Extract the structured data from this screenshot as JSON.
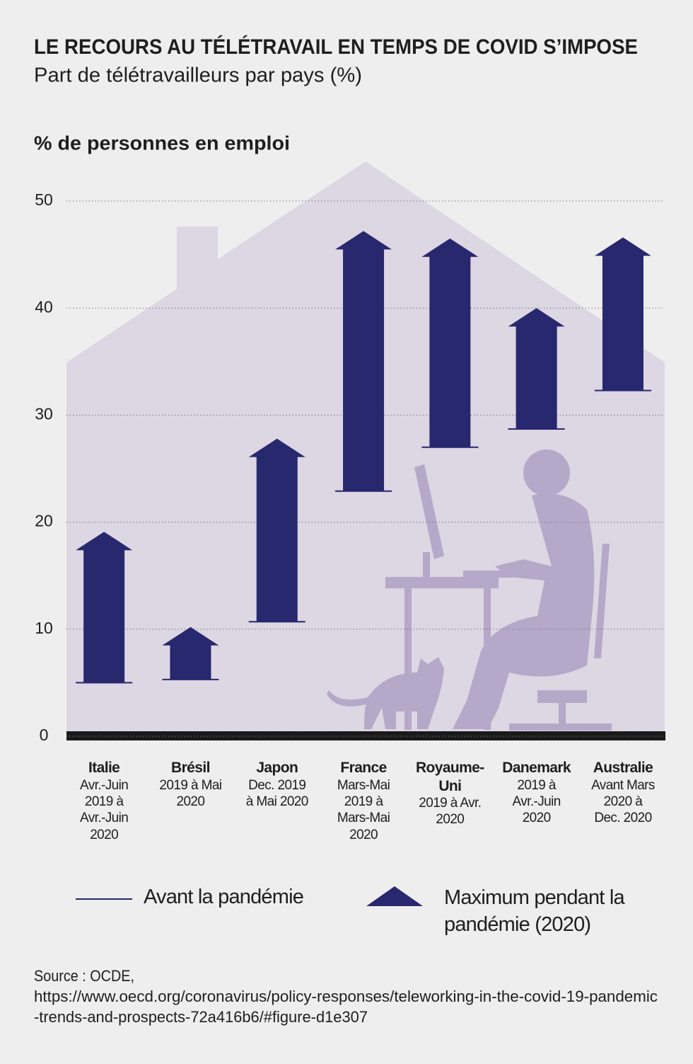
{
  "chart_data": {
    "type": "arrow",
    "title": "LE RECOURS AU TÉLÉTRAVAIL EN TEMPS DE COVID S’IMPOSE",
    "subtitle": "Part de télétravailleurs par pays (%)",
    "y_label": "% de personnes en emploi",
    "categories": [
      "Italie",
      "Brésil",
      "Japon",
      "France",
      "Royaume-Uni",
      "Danemark",
      "Australie"
    ],
    "periods": [
      "Avr.-Juin 2019 à Avr.-Juin 2020",
      "2019 à Mai 2020",
      "Dec. 2019 à Mai 2020",
      "Mars-Mai 2019 à Mars-Mai 2020",
      "2019 à Avr. 2020",
      "2019 à Avr.-Juin 2020",
      "Avant Mars 2020 à Dec. 2020"
    ],
    "series": [
      {
        "name": "Avant la pandémie",
        "color": "#27286e",
        "values": [
          5.0,
          5.3,
          10.7,
          22.9,
          27.0,
          28.7,
          32.3
        ]
      },
      {
        "name": "Maximum pendant la pandémie (2020)",
        "color": "#27286e",
        "values": [
          19.1,
          10.2,
          27.8,
          47.2,
          46.5,
          40.0,
          46.6
        ]
      }
    ],
    "ylim": [
      0,
      50
    ],
    "yticks": [
      0,
      10,
      20,
      30,
      40,
      50
    ],
    "grid": true,
    "source": [
      "Source : OCDE,",
      "https://www.oecd.org/coronavirus/policy-responses/teleworking-in-the-covid-19-pandemic",
      "-trends-and-prospects-72a416b6/#figure-d1e307"
    ]
  }
}
